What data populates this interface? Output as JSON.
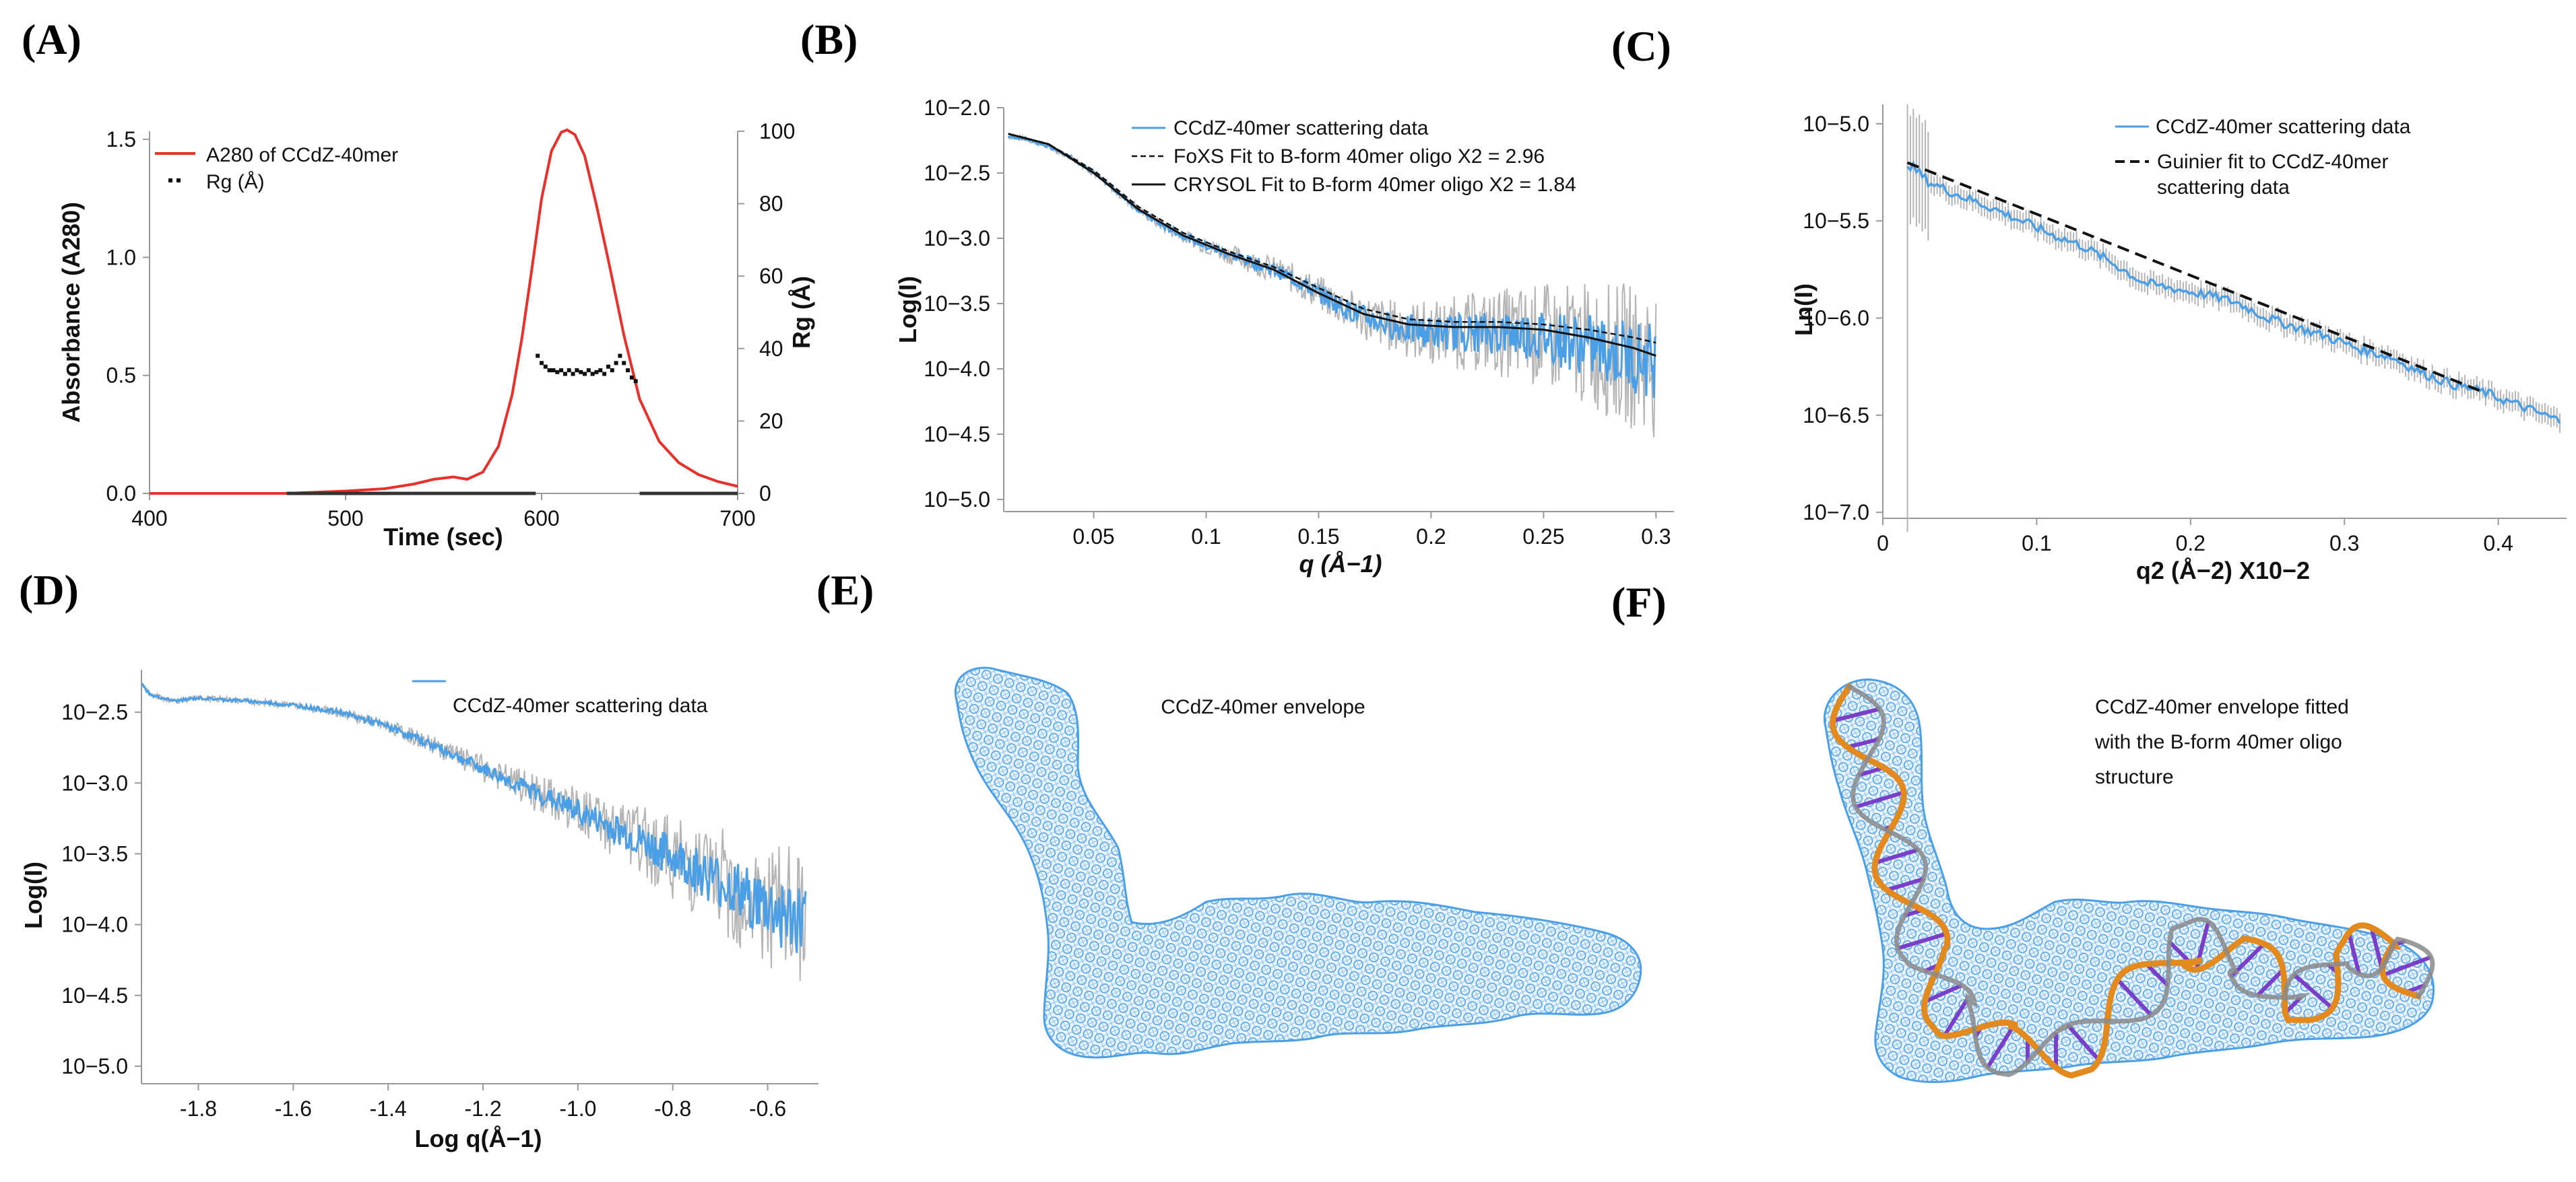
{
  "panels": {
    "A": "(A)",
    "B": "(B)",
    "C": "(C)",
    "D": "(D)",
    "E": "(E)",
    "F": "(F)"
  },
  "colors": {
    "red": "#e8312a",
    "blue": "#4a9fe6",
    "gray": "#b5b5b5",
    "black": "#111111",
    "envelope": "#4a9fe6",
    "dna_backbone": "#e38a1e",
    "dna_bases": "#7a3fc8"
  },
  "chart_data": [
    {
      "id": "A",
      "type": "line",
      "xlabel": "Time (sec)",
      "ylabel_left": "Absorbance (A280)",
      "ylabel_right": "Rg (Å)",
      "xlim": [
        400,
        700
      ],
      "ylim_left": [
        0,
        1.6
      ],
      "ylim_right": [
        0,
        100
      ],
      "xticks": [
        "400",
        "500",
        "600",
        "700"
      ],
      "yticks_left": [
        "0.0",
        "0.5",
        "1.0",
        "1.5"
      ],
      "yticks_right": [
        "0",
        "20",
        "40",
        "60",
        "80",
        "100"
      ],
      "legend": [
        "A280 of CCdZ-40mer",
        "Rg (Å)"
      ],
      "series": [
        {
          "name": "A280 of CCdZ-40mer",
          "axis": "left",
          "x": [
            400,
            470,
            500,
            520,
            535,
            545,
            555,
            562,
            570,
            578,
            585,
            590,
            595,
            600,
            605,
            610,
            613,
            617,
            622,
            628,
            635,
            642,
            650,
            660,
            670,
            680,
            690,
            700
          ],
          "y": [
            0,
            0,
            0.01,
            0.02,
            0.04,
            0.06,
            0.07,
            0.06,
            0.09,
            0.2,
            0.42,
            0.66,
            0.95,
            1.25,
            1.45,
            1.53,
            1.54,
            1.52,
            1.43,
            1.22,
            0.95,
            0.67,
            0.4,
            0.22,
            0.13,
            0.08,
            0.05,
            0.03
          ]
        },
        {
          "name": "Rg (Å)",
          "axis": "right",
          "x": [
            598,
            600,
            602,
            604,
            606,
            608,
            610,
            612,
            614,
            616,
            618,
            620,
            622,
            624,
            626,
            628,
            630,
            632,
            634,
            636,
            638,
            640,
            642,
            644,
            646,
            648
          ],
          "y": [
            38,
            36,
            35,
            34,
            34,
            33.5,
            34,
            33,
            34,
            33,
            34,
            33.5,
            33,
            34,
            33,
            33.5,
            34,
            33,
            35,
            34,
            36,
            38,
            36,
            34,
            32,
            31
          ]
        }
      ]
    },
    {
      "id": "B",
      "type": "line",
      "xlabel": "q (Å−1)",
      "ylabel": "Log(I)",
      "xlim": [
        0.01,
        0.305
      ],
      "ylim": [
        -5.0,
        -2.0
      ],
      "xticks": [
        "0.05",
        "0.1",
        "0.15",
        "0.2",
        "0.25",
        "0.3"
      ],
      "yticks": [
        "10−2.0",
        "10−2.5",
        "10−3.0",
        "10−3.5",
        "10−4.0",
        "10−4.5",
        "10−5.0"
      ],
      "legend": [
        "CCdZ-40mer scattering data",
        "FoXS Fit to B-form 40mer oligo X2 = 2.96",
        "CRYSOL Fit to B-form 40mer oligo X2 = 1.84"
      ],
      "series": [
        {
          "name": "CCdZ-40mer scattering data",
          "x": [
            0.012,
            0.02,
            0.03,
            0.04,
            0.05,
            0.06,
            0.07,
            0.08,
            0.09,
            0.1,
            0.11,
            0.12,
            0.13,
            0.14,
            0.15,
            0.16,
            0.17,
            0.18,
            0.19,
            0.2,
            0.21,
            0.22,
            0.23,
            0.24,
            0.25,
            0.26,
            0.27,
            0.28,
            0.29,
            0.3
          ],
          "y": [
            -2.22,
            -2.24,
            -2.3,
            -2.38,
            -2.5,
            -2.64,
            -2.78,
            -2.9,
            -2.98,
            -3.06,
            -3.12,
            -3.18,
            -3.24,
            -3.32,
            -3.42,
            -3.52,
            -3.6,
            -3.66,
            -3.7,
            -3.72,
            -3.72,
            -3.72,
            -3.72,
            -3.73,
            -3.75,
            -3.78,
            -3.82,
            -3.86,
            -3.9,
            -3.94
          ]
        },
        {
          "name": "FoXS Fit to B-form 40mer oligo X2 = 2.96",
          "x": [
            0.012,
            0.03,
            0.05,
            0.07,
            0.09,
            0.11,
            0.13,
            0.15,
            0.17,
            0.19,
            0.21,
            0.23,
            0.25,
            0.27,
            0.29,
            0.3
          ],
          "y": [
            -2.2,
            -2.28,
            -2.48,
            -2.76,
            -2.96,
            -3.1,
            -3.22,
            -3.38,
            -3.54,
            -3.62,
            -3.64,
            -3.64,
            -3.66,
            -3.7,
            -3.76,
            -3.8
          ]
        },
        {
          "name": "CRYSOL Fit to B-form 40mer oligo X2 = 1.84",
          "x": [
            0.012,
            0.03,
            0.05,
            0.07,
            0.09,
            0.11,
            0.13,
            0.15,
            0.17,
            0.19,
            0.21,
            0.23,
            0.25,
            0.27,
            0.29,
            0.3
          ],
          "y": [
            -2.2,
            -2.28,
            -2.5,
            -2.78,
            -2.98,
            -3.12,
            -3.24,
            -3.42,
            -3.58,
            -3.66,
            -3.68,
            -3.68,
            -3.7,
            -3.76,
            -3.84,
            -3.9
          ]
        }
      ]
    },
    {
      "id": "C",
      "type": "line",
      "xlabel": "q2 (Å−2) X10−2",
      "ylabel": "Ln(I)",
      "xlim": [
        0,
        0.44
      ],
      "ylim": [
        -7.1,
        -4.9
      ],
      "xticks": [
        "0",
        "0.1",
        "0.2",
        "0.3",
        "0.4"
      ],
      "yticks": [
        "10−5.0",
        "10−5.5",
        "10−6.0",
        "10−6.5",
        "10−7.0"
      ],
      "legend": [
        "CCdZ-40mer scattering data",
        "Guinier fit to CCdZ-40mer scattering data"
      ],
      "series": [
        {
          "name": "CCdZ-40mer scattering data",
          "x": [
            0.016,
            0.03,
            0.05,
            0.07,
            0.09,
            0.11,
            0.13,
            0.15,
            0.17,
            0.19,
            0.21,
            0.23,
            0.25,
            0.27,
            0.29,
            0.31,
            0.33,
            0.35,
            0.37,
            0.39,
            0.41,
            0.43,
            0.44
          ],
          "y": [
            -5.2,
            -5.3,
            -5.37,
            -5.43,
            -5.5,
            -5.57,
            -5.63,
            -5.72,
            -5.82,
            -5.85,
            -5.88,
            -5.92,
            -6.0,
            -6.05,
            -6.1,
            -6.16,
            -6.2,
            -6.28,
            -6.34,
            -6.38,
            -6.44,
            -6.5,
            -6.53
          ]
        },
        {
          "name": "Guinier fit to CCdZ-40mer scattering data",
          "x": [
            0.016,
            0.39
          ],
          "y": [
            -5.2,
            -6.38
          ]
        }
      ]
    },
    {
      "id": "D",
      "type": "line",
      "xlabel": "Log q(Å−1)",
      "ylabel": "Log(I)",
      "xlim": [
        -1.92,
        -0.5
      ],
      "ylim": [
        -5.1,
        -2.2
      ],
      "xticks": [
        "-1.8",
        "-1.6",
        "-1.4",
        "-1.2",
        "-1.0",
        "-0.8",
        "-0.6"
      ],
      "yticks": [
        "10−2.5",
        "10−3.0",
        "10−3.5",
        "10−4.0",
        "10−4.5",
        "10−5.0"
      ],
      "legend": [
        "CCdZ-40mer scattering data"
      ],
      "series": [
        {
          "name": "CCdZ-40mer scattering data",
          "x": [
            -1.92,
            -1.9,
            -1.85,
            -1.8,
            -1.7,
            -1.6,
            -1.5,
            -1.4,
            -1.3,
            -1.2,
            -1.1,
            -1.0,
            -0.9,
            -0.8,
            -0.7,
            -0.6,
            -0.52
          ],
          "y": [
            -2.3,
            -2.38,
            -2.42,
            -2.4,
            -2.42,
            -2.45,
            -2.5,
            -2.6,
            -2.74,
            -2.9,
            -3.05,
            -3.2,
            -3.36,
            -3.52,
            -3.7,
            -3.88,
            -4.0
          ]
        }
      ]
    }
  ],
  "panel_E": {
    "caption": "CCdZ-40mer envelope"
  },
  "panel_F": {
    "caption_lines": [
      "CCdZ-40mer envelope fitted",
      "with the B-form 40mer oligo",
      "structure"
    ]
  }
}
